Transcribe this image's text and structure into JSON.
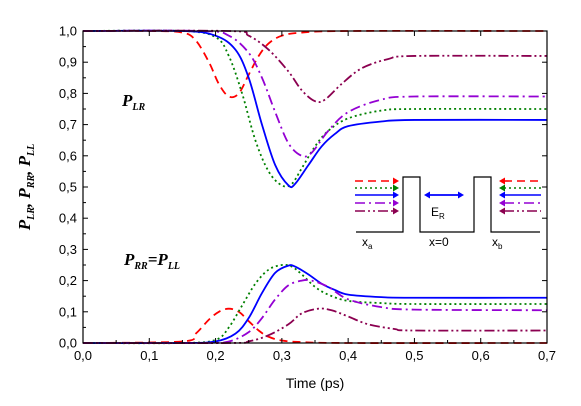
{
  "chart_data": {
    "type": "line",
    "xlabel": "Time  (ps)",
    "ylabel": {
      "p1": "P",
      "s1": "LR",
      "sep1": ",  ",
      "p2": "P",
      "s2": "RR",
      "sep2": ",  ",
      "p3": "P",
      "s3": "LL"
    },
    "xlim": [
      0.0,
      0.7
    ],
    "ylim": [
      0.0,
      1.0
    ],
    "xticks": [
      {
        "v": 0.0,
        "label": "0,0"
      },
      {
        "v": 0.1,
        "label": "0,1"
      },
      {
        "v": 0.2,
        "label": "0,2"
      },
      {
        "v": 0.3,
        "label": "0,3"
      },
      {
        "v": 0.4,
        "label": "0,4"
      },
      {
        "v": 0.5,
        "label": "0,5"
      },
      {
        "v": 0.6,
        "label": "0,6"
      },
      {
        "v": 0.7,
        "label": "0,7"
      }
    ],
    "yticks": [
      {
        "v": 0.0,
        "label": "0,0"
      },
      {
        "v": 0.1,
        "label": "0,1"
      },
      {
        "v": 0.2,
        "label": "0,2"
      },
      {
        "v": 0.3,
        "label": "0,3"
      },
      {
        "v": 0.4,
        "label": "0,4"
      },
      {
        "v": 0.5,
        "label": "0,5"
      },
      {
        "v": 0.6,
        "label": "0,6"
      },
      {
        "v": 0.7,
        "label": "0,7"
      },
      {
        "v": 0.8,
        "label": "0,8"
      },
      {
        "v": 0.9,
        "label": "0,9"
      },
      {
        "v": 1.0,
        "label": "1,0"
      }
    ],
    "annotations": {
      "lr": {
        "p": "P",
        "s": "LR"
      },
      "rr_ll": {
        "p1": "P",
        "s1": "RR",
        "eq": "=",
        "p2": "P",
        "s2": "LL"
      }
    },
    "inset": {
      "xa": {
        "x": "x",
        "s": "a"
      },
      "x0": "x=0",
      "xb": {
        "x": "x",
        "s": "b"
      },
      "er": {
        "e": "E",
        "s": "R"
      }
    },
    "series": [
      {
        "color": "#ff0000",
        "dash": "8,5",
        "upper": [
          [
            0,
            1.0
          ],
          [
            0.1,
            1.0
          ],
          [
            0.15,
            0.995
          ],
          [
            0.17,
            0.97
          ],
          [
            0.19,
            0.9
          ],
          [
            0.205,
            0.83
          ],
          [
            0.22,
            0.79
          ],
          [
            0.235,
            0.8
          ],
          [
            0.25,
            0.86
          ],
          [
            0.265,
            0.92
          ],
          [
            0.28,
            0.96
          ],
          [
            0.3,
            0.985
          ],
          [
            0.33,
            0.995
          ],
          [
            0.4,
            1.0
          ],
          [
            0.7,
            1.0
          ]
        ],
        "lower": [
          [
            0,
            0.0
          ],
          [
            0.15,
            0.005
          ],
          [
            0.17,
            0.03
          ],
          [
            0.19,
            0.075
          ],
          [
            0.205,
            0.1
          ],
          [
            0.22,
            0.11
          ],
          [
            0.235,
            0.1
          ],
          [
            0.25,
            0.07
          ],
          [
            0.265,
            0.04
          ],
          [
            0.28,
            0.02
          ],
          [
            0.3,
            0.008
          ],
          [
            0.33,
            0.003
          ],
          [
            0.4,
            0.0
          ],
          [
            0.7,
            0.0
          ]
        ]
      },
      {
        "color": "#008000",
        "dash": "2,3",
        "upper": [
          [
            0,
            1.0
          ],
          [
            0.15,
            1.0
          ],
          [
            0.2,
            0.98
          ],
          [
            0.22,
            0.92
          ],
          [
            0.24,
            0.8
          ],
          [
            0.26,
            0.65
          ],
          [
            0.28,
            0.55
          ],
          [
            0.3,
            0.505
          ],
          [
            0.315,
            0.51
          ],
          [
            0.33,
            0.56
          ],
          [
            0.35,
            0.63
          ],
          [
            0.37,
            0.68
          ],
          [
            0.4,
            0.72
          ],
          [
            0.45,
            0.745
          ],
          [
            0.5,
            0.75
          ],
          [
            0.7,
            0.75
          ]
        ],
        "lower": [
          [
            0,
            0.0
          ],
          [
            0.15,
            0.0
          ],
          [
            0.2,
            0.01
          ],
          [
            0.22,
            0.05
          ],
          [
            0.24,
            0.12
          ],
          [
            0.26,
            0.19
          ],
          [
            0.28,
            0.235
          ],
          [
            0.3,
            0.25
          ],
          [
            0.315,
            0.245
          ],
          [
            0.33,
            0.22
          ],
          [
            0.35,
            0.18
          ],
          [
            0.37,
            0.155
          ],
          [
            0.4,
            0.135
          ],
          [
            0.45,
            0.128
          ],
          [
            0.5,
            0.125
          ],
          [
            0.7,
            0.125
          ]
        ]
      },
      {
        "color": "#0000ff",
        "dash": "",
        "upper": [
          [
            0,
            1.0
          ],
          [
            0.15,
            1.0
          ],
          [
            0.2,
            0.985
          ],
          [
            0.23,
            0.94
          ],
          [
            0.25,
            0.85
          ],
          [
            0.27,
            0.7
          ],
          [
            0.29,
            0.57
          ],
          [
            0.31,
            0.505
          ],
          [
            0.32,
            0.51
          ],
          [
            0.34,
            0.57
          ],
          [
            0.36,
            0.63
          ],
          [
            0.38,
            0.67
          ],
          [
            0.4,
            0.695
          ],
          [
            0.45,
            0.71
          ],
          [
            0.5,
            0.715
          ],
          [
            0.7,
            0.715
          ]
        ],
        "lower": [
          [
            0,
            0.0
          ],
          [
            0.15,
            0.0
          ],
          [
            0.2,
            0.005
          ],
          [
            0.23,
            0.03
          ],
          [
            0.25,
            0.08
          ],
          [
            0.27,
            0.16
          ],
          [
            0.29,
            0.225
          ],
          [
            0.31,
            0.248
          ],
          [
            0.32,
            0.245
          ],
          [
            0.34,
            0.22
          ],
          [
            0.36,
            0.19
          ],
          [
            0.38,
            0.17
          ],
          [
            0.4,
            0.155
          ],
          [
            0.45,
            0.147
          ],
          [
            0.5,
            0.145
          ],
          [
            0.7,
            0.145
          ]
        ]
      },
      {
        "color": "#9400d3",
        "dash": "10,4,2,4",
        "upper": [
          [
            0,
            1.0
          ],
          [
            0.18,
            1.0
          ],
          [
            0.22,
            0.985
          ],
          [
            0.25,
            0.93
          ],
          [
            0.27,
            0.85
          ],
          [
            0.29,
            0.74
          ],
          [
            0.31,
            0.64
          ],
          [
            0.33,
            0.6
          ],
          [
            0.345,
            0.61
          ],
          [
            0.37,
            0.68
          ],
          [
            0.4,
            0.74
          ],
          [
            0.45,
            0.78
          ],
          [
            0.5,
            0.79
          ],
          [
            0.7,
            0.79
          ]
        ],
        "lower": [
          [
            0,
            0.0
          ],
          [
            0.18,
            0.0
          ],
          [
            0.22,
            0.005
          ],
          [
            0.25,
            0.035
          ],
          [
            0.27,
            0.08
          ],
          [
            0.29,
            0.14
          ],
          [
            0.31,
            0.185
          ],
          [
            0.33,
            0.2
          ],
          [
            0.345,
            0.2
          ],
          [
            0.37,
            0.18
          ],
          [
            0.4,
            0.14
          ],
          [
            0.45,
            0.115
          ],
          [
            0.5,
            0.107
          ],
          [
            0.7,
            0.105
          ]
        ]
      },
      {
        "color": "#8b0050",
        "dash": "10,3,2,3,2,3",
        "upper": [
          [
            0,
            1.0
          ],
          [
            0.22,
            1.0
          ],
          [
            0.25,
            0.985
          ],
          [
            0.28,
            0.94
          ],
          [
            0.31,
            0.87
          ],
          [
            0.33,
            0.81
          ],
          [
            0.35,
            0.775
          ],
          [
            0.365,
            0.78
          ],
          [
            0.39,
            0.83
          ],
          [
            0.42,
            0.88
          ],
          [
            0.46,
            0.91
          ],
          [
            0.5,
            0.92
          ],
          [
            0.7,
            0.92
          ]
        ],
        "lower": [
          [
            0,
            0.0
          ],
          [
            0.22,
            0.0
          ],
          [
            0.25,
            0.005
          ],
          [
            0.28,
            0.025
          ],
          [
            0.31,
            0.06
          ],
          [
            0.33,
            0.095
          ],
          [
            0.355,
            0.11
          ],
          [
            0.375,
            0.105
          ],
          [
            0.4,
            0.085
          ],
          [
            0.43,
            0.06
          ],
          [
            0.47,
            0.045
          ],
          [
            0.5,
            0.04
          ],
          [
            0.7,
            0.04
          ]
        ]
      }
    ]
  }
}
